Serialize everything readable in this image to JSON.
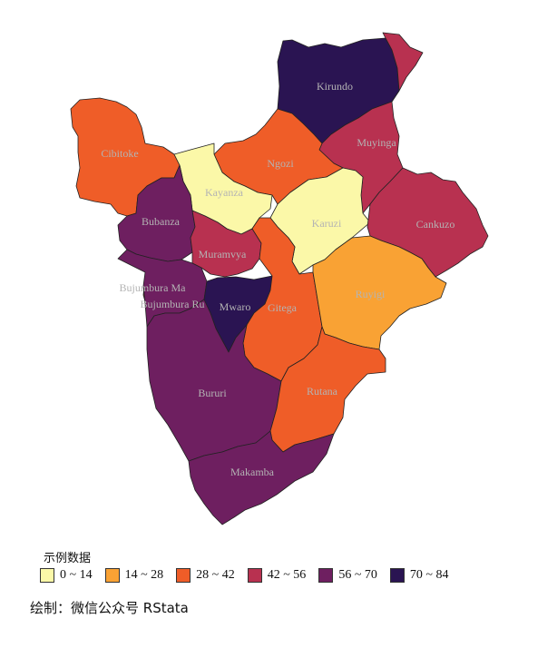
{
  "map": {
    "regions": [
      {
        "id": "kirundo",
        "name": "Kirundo",
        "bin": 5,
        "color": "#2a1452"
      },
      {
        "id": "muyinga",
        "name": "Muyinga",
        "bin": 3,
        "color": "#b83150"
      },
      {
        "id": "ngozi",
        "name": "Ngozi",
        "bin": 2,
        "color": "#ef5d28"
      },
      {
        "id": "cibitoke",
        "name": "Cibitoke",
        "bin": 2,
        "color": "#ef5d28"
      },
      {
        "id": "kayanza",
        "name": "Kayanza",
        "bin": 0,
        "color": "#fbf8a8"
      },
      {
        "id": "karuzi",
        "name": "Karuzi",
        "bin": 0,
        "color": "#fbf8a8"
      },
      {
        "id": "cankuzo",
        "name": "Cankuzo",
        "bin": 3,
        "color": "#b83150"
      },
      {
        "id": "bubanza",
        "name": "Bubanza",
        "bin": 4,
        "color": "#6e1f60"
      },
      {
        "id": "muramvya",
        "name": "Muramvya",
        "bin": 3,
        "color": "#b83150"
      },
      {
        "id": "bujumbura_mairie",
        "name": "Bujumbura Ma",
        "bin": 2,
        "color": "#ef5d28"
      },
      {
        "id": "bujumbura_rural",
        "name": "Bujumbura Ru",
        "bin": 4,
        "color": "#6e1f60"
      },
      {
        "id": "mwaro",
        "name": "Mwaro",
        "bin": 5,
        "color": "#2a1452"
      },
      {
        "id": "gitega",
        "name": "Gitega",
        "bin": 2,
        "color": "#ef5d28"
      },
      {
        "id": "ruyigi",
        "name": "Ruyigi",
        "bin": 1,
        "color": "#f9a234"
      },
      {
        "id": "bururi",
        "name": "Bururi",
        "bin": 4,
        "color": "#6e1f60"
      },
      {
        "id": "rutana",
        "name": "Rutana",
        "bin": 2,
        "color": "#ef5d28"
      },
      {
        "id": "makamba",
        "name": "Makamba",
        "bin": 4,
        "color": "#6e1f60"
      }
    ]
  },
  "legend": {
    "title": "示例数据",
    "items": [
      {
        "label": "0 ~ 14",
        "color": "#fbf8a8"
      },
      {
        "label": "14 ~ 28",
        "color": "#f9a234"
      },
      {
        "label": "28 ~ 42",
        "color": "#ef5d28"
      },
      {
        "label": "42 ~ 56",
        "color": "#b83150"
      },
      {
        "label": "56 ~ 70",
        "color": "#6e1f60"
      },
      {
        "label": "70 ~ 84",
        "color": "#2a1452"
      }
    ]
  },
  "caption": "绘制：微信公众号 RStata"
}
